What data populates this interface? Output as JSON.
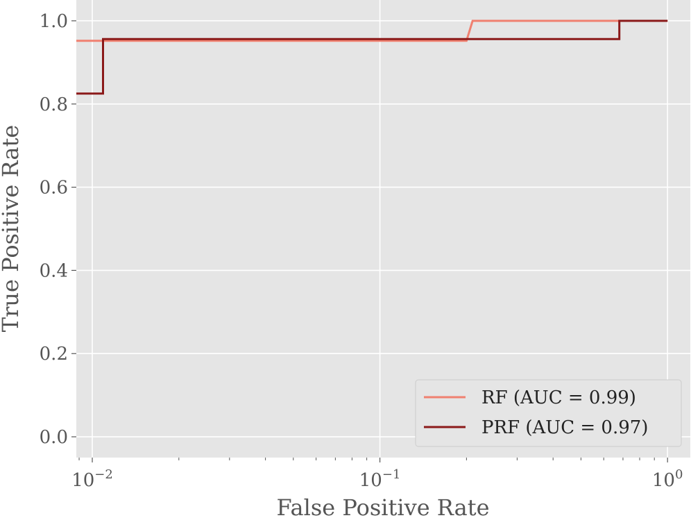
{
  "chart_data": {
    "type": "line",
    "xlabel": "False Positive Rate",
    "ylabel": "True Positive Rate",
    "xscale": "log",
    "xlim": [
      0.0088,
      1.2
    ],
    "ylim": [
      -0.05,
      1.05
    ],
    "grid": true,
    "legend_position": "bottom-right",
    "x_ticks": [
      {
        "value": 0.01,
        "base": "10",
        "exp": "−2"
      },
      {
        "value": 0.1,
        "base": "10",
        "exp": "−1"
      },
      {
        "value": 1,
        "base": "10",
        "exp": "0"
      }
    ],
    "y_ticks": [
      {
        "value": 0.0,
        "label": "0.0"
      },
      {
        "value": 0.2,
        "label": "0.2"
      },
      {
        "value": 0.4,
        "label": "0.4"
      },
      {
        "value": 0.6,
        "label": "0.6"
      },
      {
        "value": 0.8,
        "label": "0.8"
      },
      {
        "value": 1.0,
        "label": "1.0"
      }
    ],
    "series": [
      {
        "name": "RF (AUC = 0.99)",
        "color": "#f08070",
        "x": [
          0.0088,
          0.2,
          0.21,
          1.0
        ],
        "y": [
          0.952,
          0.952,
          1.0,
          1.0
        ]
      },
      {
        "name": "PRF (AUC = 0.97)",
        "color": "#8b1a1a",
        "x": [
          0.0088,
          0.0109,
          0.0109,
          0.68,
          0.68,
          1.0
        ],
        "y": [
          0.825,
          0.825,
          0.956,
          0.956,
          1.0,
          1.0
        ]
      }
    ]
  }
}
